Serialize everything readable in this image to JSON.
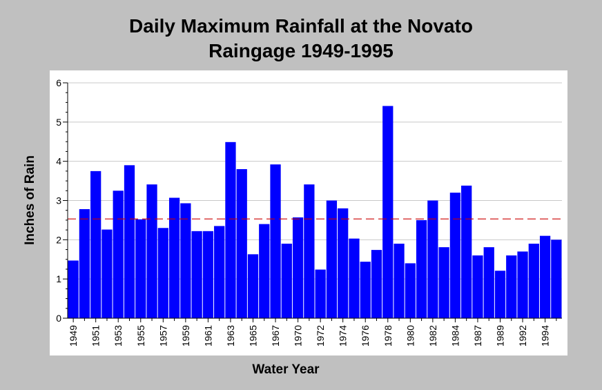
{
  "chart_data": {
    "type": "bar",
    "title": "Daily Maximum Rainfall at the Novato Raingage 1949-1995",
    "title_lines": [
      "Daily Maximum Rainfall at the Novato",
      "Raingage 1949-1995"
    ],
    "xlabel": "Water Year",
    "ylabel": "Inches of Rain",
    "ylim": [
      0,
      6
    ],
    "yticks": [
      0,
      1,
      2,
      3,
      4,
      5,
      6
    ],
    "grid": "horizontal",
    "legend": "none",
    "categories": [
      "1949",
      "1950",
      "1951",
      "1952",
      "1953",
      "1954",
      "1955",
      "1956",
      "1957",
      "1958",
      "1959",
      "1960",
      "1961",
      "1962",
      "1963",
      "1964",
      "1965",
      "1966",
      "1967",
      "1969",
      "1970",
      "1971",
      "1972",
      "1973",
      "1974",
      "1975",
      "1976",
      "1977",
      "1978",
      "1979",
      "1980",
      "1981",
      "1982",
      "1983",
      "1984",
      "1986",
      "1987",
      "1988",
      "1989",
      "1990",
      "1992",
      "1993",
      "1994",
      "1995"
    ],
    "x_tick_labels": [
      "1949",
      "1951",
      "1953",
      "1955",
      "1957",
      "1959",
      "1961",
      "1963",
      "1965",
      "1967",
      "1970",
      "1972",
      "1974",
      "1976",
      "1978",
      "1980",
      "1982",
      "1984",
      "1987",
      "1989",
      "1992",
      "1994"
    ],
    "values": [
      1.47,
      2.78,
      3.75,
      2.26,
      3.25,
      3.9,
      2.52,
      3.41,
      2.3,
      3.07,
      2.93,
      2.22,
      2.22,
      2.35,
      4.49,
      3.8,
      1.63,
      2.4,
      3.92,
      1.9,
      2.57,
      3.41,
      1.24,
      3.0,
      2.8,
      2.03,
      1.44,
      1.74,
      5.41,
      1.9,
      1.4,
      2.5,
      3.0,
      1.81,
      3.2,
      3.38,
      1.6,
      1.81,
      1.21,
      1.6,
      1.7,
      1.9,
      2.1,
      2.0
    ],
    "mean_line": 2.53,
    "bar_color": "#0000ff",
    "mean_line_color": "#cc0000"
  }
}
